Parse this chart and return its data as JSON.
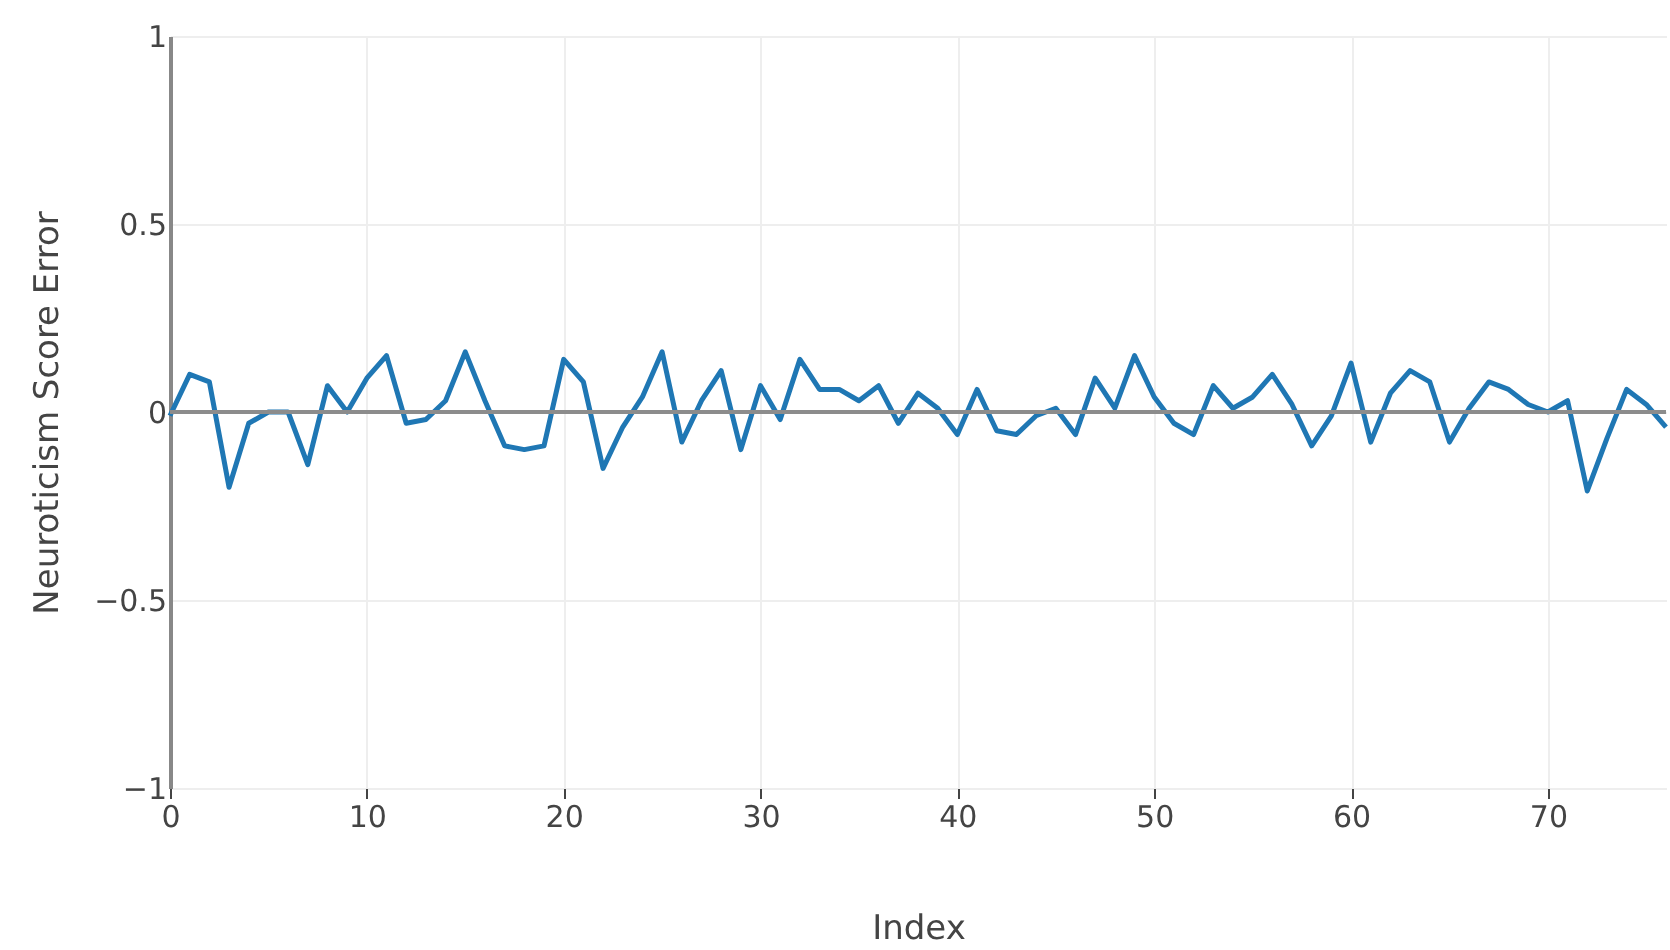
{
  "chart_data": {
    "type": "line",
    "xlabel": "Index",
    "ylabel": "Neuroticism Score Error",
    "x": [
      0,
      1,
      2,
      3,
      4,
      5,
      6,
      7,
      8,
      9,
      10,
      11,
      12,
      13,
      14,
      15,
      16,
      17,
      18,
      19,
      20,
      21,
      22,
      23,
      24,
      25,
      26,
      27,
      28,
      29,
      30,
      31,
      32,
      33,
      34,
      35,
      36,
      37,
      38,
      39,
      40,
      41,
      42,
      43,
      44,
      45,
      46,
      47,
      48,
      49,
      50,
      51,
      52,
      53,
      54,
      55,
      56,
      57,
      58,
      59,
      60,
      61,
      62,
      63,
      64,
      65,
      66,
      67,
      68,
      69,
      70,
      71,
      72,
      73,
      74,
      75,
      76
    ],
    "series": [
      {
        "color": "#1f77b4",
        "values": [
          -0.01,
          0.1,
          0.08,
          -0.2,
          -0.03,
          0.0,
          0.0,
          -0.14,
          0.07,
          0.0,
          0.09,
          0.15,
          -0.03,
          -0.02,
          0.03,
          0.16,
          0.03,
          -0.09,
          -0.1,
          -0.09,
          0.14,
          0.08,
          -0.15,
          -0.04,
          0.04,
          0.16,
          -0.08,
          0.03,
          0.11,
          -0.1,
          0.07,
          -0.02,
          0.14,
          0.06,
          0.06,
          0.03,
          0.07,
          -0.03,
          0.05,
          0.01,
          -0.06,
          0.06,
          -0.05,
          -0.06,
          -0.01,
          0.01,
          -0.06,
          0.09,
          0.01,
          0.15,
          0.04,
          -0.03,
          -0.06,
          0.07,
          0.01,
          0.04,
          0.1,
          0.02,
          -0.09,
          -0.01,
          0.13,
          -0.08,
          0.05,
          0.11,
          0.08,
          -0.08,
          0.01,
          0.08,
          0.06,
          0.02,
          0.0,
          0.03,
          -0.21,
          -0.07,
          0.06,
          0.02,
          -0.04
        ]
      }
    ],
    "xlim": [
      0,
      76
    ],
    "xticks": [
      0,
      10,
      20,
      30,
      40,
      50,
      60,
      70
    ],
    "ylim": [
      -1,
      1
    ],
    "yticks": [
      {
        "value": -1,
        "label": "−1"
      },
      {
        "value": -0.5,
        "label": "−0.5"
      },
      0,
      0.5,
      1
    ],
    "ref_lines": [
      {
        "axis": "y",
        "value": 0,
        "color": "#8c8c8c"
      }
    ],
    "grid": true,
    "marker": "none",
    "line_style": "solid"
  }
}
